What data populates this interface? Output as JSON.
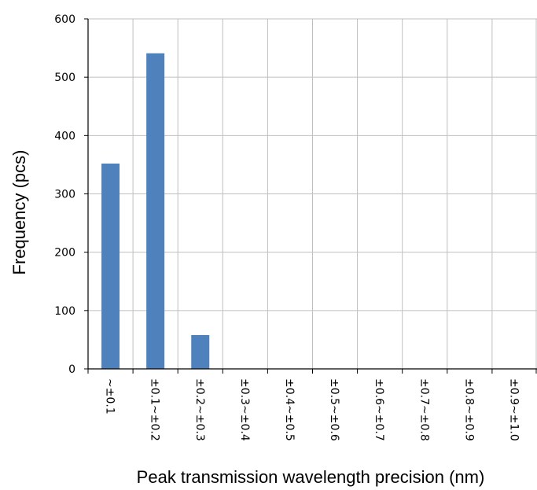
{
  "chart_data": {
    "type": "bar",
    "categories": [
      "~±0.1",
      "±0.1~±0.2",
      "±0.2~±0.3",
      "±0.3~±0.4",
      "±0.4~±0.5",
      "±0.5~±0.6",
      "±0.6~±0.7",
      "±0.7~±0.8",
      "±0.8~±0.9",
      "±0.9~±1.0"
    ],
    "values": [
      352,
      541,
      58,
      0,
      0,
      0,
      0,
      0,
      0,
      0
    ],
    "title": "",
    "xlabel": "Peak transmission wavelength precision (nm)",
    "ylabel": "Frequency (pcs)",
    "ylim": [
      0,
      600
    ],
    "yticks": [
      0,
      100,
      200,
      300,
      400,
      500,
      600
    ],
    "grid": true,
    "legend": "none",
    "colors": {
      "bar": "#4f81bd",
      "grid": "#bfbfbf",
      "axis": "#000000"
    }
  }
}
